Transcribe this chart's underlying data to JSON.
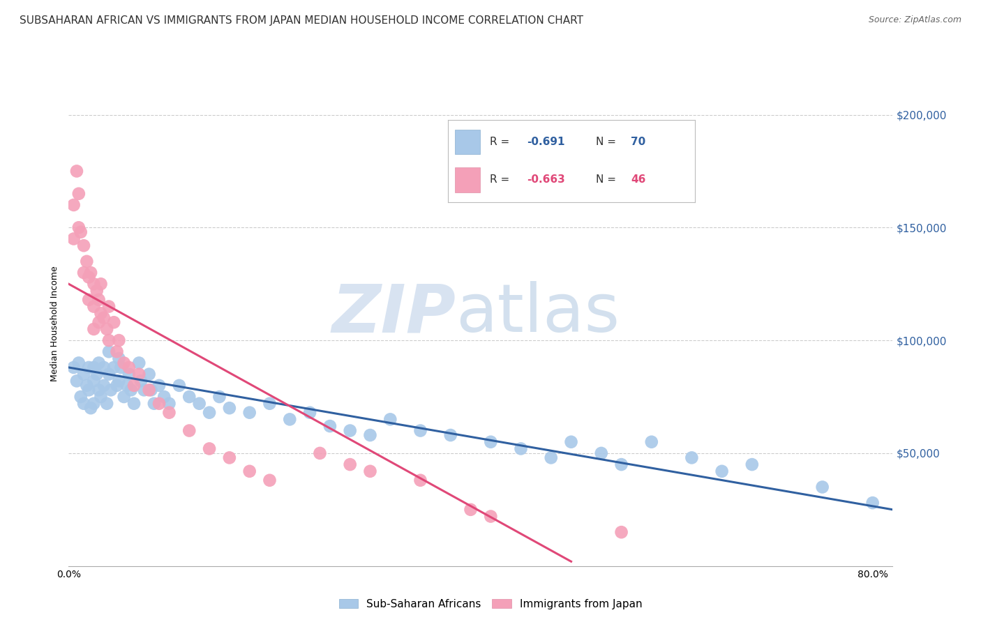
{
  "title": "SUBSAHARAN AFRICAN VS IMMIGRANTS FROM JAPAN MEDIAN HOUSEHOLD INCOME CORRELATION CHART",
  "source": "Source: ZipAtlas.com",
  "ylabel": "Median Household Income",
  "watermark_zip": "ZIP",
  "watermark_atlas": "atlas",
  "legend_blue_label": "Sub-Saharan Africans",
  "legend_pink_label": "Immigrants from Japan",
  "blue_color": "#a8c8e8",
  "pink_color": "#f4a0b8",
  "blue_line_color": "#3060a0",
  "pink_line_color": "#e04878",
  "ytick_labels": [
    "$50,000",
    "$100,000",
    "$150,000",
    "$200,000"
  ],
  "ytick_values": [
    50000,
    100000,
    150000,
    200000
  ],
  "ylim": [
    0,
    215000
  ],
  "xlim": [
    0.0,
    0.82
  ],
  "blue_scatter_x": [
    0.005,
    0.008,
    0.01,
    0.012,
    0.015,
    0.015,
    0.018,
    0.02,
    0.02,
    0.022,
    0.025,
    0.025,
    0.025,
    0.028,
    0.03,
    0.03,
    0.032,
    0.035,
    0.035,
    0.038,
    0.04,
    0.04,
    0.042,
    0.045,
    0.048,
    0.05,
    0.05,
    0.052,
    0.055,
    0.058,
    0.06,
    0.062,
    0.065,
    0.07,
    0.072,
    0.075,
    0.08,
    0.082,
    0.085,
    0.09,
    0.095,
    0.1,
    0.11,
    0.12,
    0.13,
    0.14,
    0.15,
    0.16,
    0.18,
    0.2,
    0.22,
    0.24,
    0.26,
    0.28,
    0.3,
    0.32,
    0.35,
    0.38,
    0.42,
    0.45,
    0.48,
    0.5,
    0.53,
    0.55,
    0.58,
    0.62,
    0.65,
    0.68,
    0.75,
    0.8
  ],
  "blue_scatter_y": [
    88000,
    82000,
    90000,
    75000,
    85000,
    72000,
    80000,
    88000,
    78000,
    70000,
    88000,
    82000,
    72000,
    85000,
    90000,
    78000,
    75000,
    88000,
    80000,
    72000,
    95000,
    85000,
    78000,
    88000,
    80000,
    92000,
    82000,
    88000,
    75000,
    80000,
    85000,
    78000,
    72000,
    90000,
    82000,
    78000,
    85000,
    78000,
    72000,
    80000,
    75000,
    72000,
    80000,
    75000,
    72000,
    68000,
    75000,
    70000,
    68000,
    72000,
    65000,
    68000,
    62000,
    60000,
    58000,
    65000,
    60000,
    58000,
    55000,
    52000,
    48000,
    55000,
    50000,
    45000,
    55000,
    48000,
    42000,
    45000,
    35000,
    28000
  ],
  "pink_scatter_x": [
    0.005,
    0.005,
    0.008,
    0.01,
    0.01,
    0.012,
    0.015,
    0.015,
    0.018,
    0.02,
    0.02,
    0.022,
    0.025,
    0.025,
    0.025,
    0.028,
    0.03,
    0.03,
    0.032,
    0.032,
    0.035,
    0.038,
    0.04,
    0.04,
    0.045,
    0.048,
    0.05,
    0.055,
    0.06,
    0.065,
    0.07,
    0.08,
    0.09,
    0.1,
    0.12,
    0.14,
    0.16,
    0.18,
    0.2,
    0.25,
    0.28,
    0.3,
    0.35,
    0.4,
    0.42,
    0.55
  ],
  "pink_scatter_y": [
    160000,
    145000,
    175000,
    165000,
    150000,
    148000,
    142000,
    130000,
    135000,
    128000,
    118000,
    130000,
    125000,
    115000,
    105000,
    122000,
    118000,
    108000,
    125000,
    112000,
    110000,
    105000,
    115000,
    100000,
    108000,
    95000,
    100000,
    90000,
    88000,
    80000,
    85000,
    78000,
    72000,
    68000,
    60000,
    52000,
    48000,
    42000,
    38000,
    50000,
    45000,
    42000,
    38000,
    25000,
    22000,
    15000
  ],
  "blue_line_x": [
    0.0,
    0.82
  ],
  "blue_line_y": [
    88000,
    25000
  ],
  "pink_line_x": [
    0.0,
    0.5
  ],
  "pink_line_y": [
    125000,
    2000
  ],
  "bg_color": "#ffffff",
  "grid_color": "#cccccc",
  "title_fontsize": 11,
  "source_fontsize": 9,
  "axis_label_fontsize": 9,
  "tick_fontsize": 10,
  "legend_R_blue": "-0.691",
  "legend_N_blue": "70",
  "legend_R_pink": "-0.663",
  "legend_N_pink": "46"
}
